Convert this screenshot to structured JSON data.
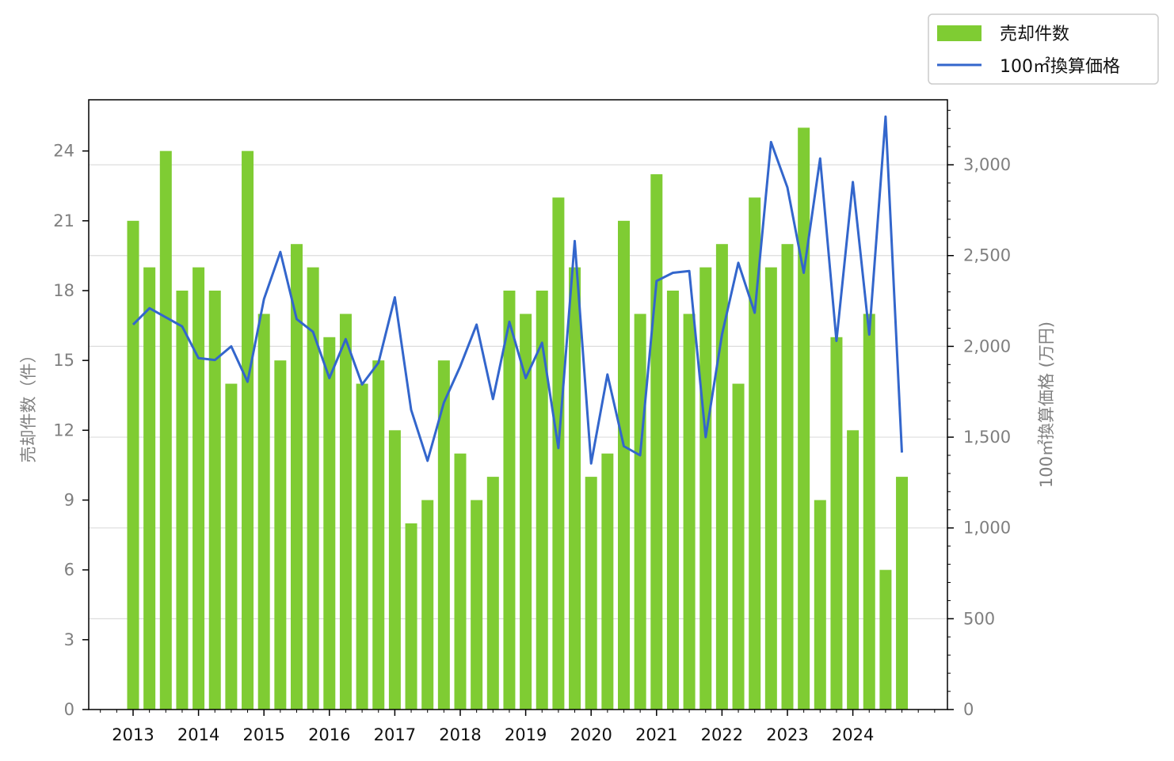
{
  "chart_data": {
    "type": "bar+line",
    "title": "",
    "xlabel": "",
    "ylabel_left": "売却件数（件）",
    "ylabel_right": "100㎡換算価格 (万円)",
    "x_tick_labels": [
      "2013",
      "2014",
      "2015",
      "2016",
      "2017",
      "2018",
      "2019",
      "2020",
      "2021",
      "2022",
      "2023",
      "2024"
    ],
    "x_start_year": 2013,
    "periods_per_year": 4,
    "left_axis": {
      "min": 0,
      "max": 26.2,
      "ticks": [
        0,
        3,
        6,
        9,
        12,
        15,
        18,
        21,
        24
      ],
      "tick_labels": [
        "0",
        "3",
        "6",
        "9",
        "12",
        "15",
        "18",
        "21",
        "24"
      ]
    },
    "right_axis": {
      "min": 0,
      "max": 3358,
      "ticks": [
        0,
        500,
        1000,
        1500,
        2000,
        2500,
        3000
      ],
      "tick_labels": [
        "0",
        "500",
        "1,000",
        "1,500",
        "2,000",
        "2,500",
        "3,000"
      ]
    },
    "grid": "horizontal (right axis)",
    "legend": {
      "position": "top-right outside",
      "entries": [
        "売却件数",
        "100㎡換算価格"
      ]
    },
    "colors": {
      "bar": "#7fcc33",
      "line": "#3366cc",
      "grid": "#dddddd",
      "tick_text": "#7f7f7f"
    },
    "series": [
      {
        "name": "売却件数",
        "type": "bar",
        "axis": "left",
        "values": [
          21,
          19,
          24,
          18,
          19,
          18,
          14,
          24,
          17,
          15,
          20,
          19,
          16,
          17,
          14,
          15,
          12,
          8,
          9,
          15,
          11,
          9,
          10,
          18,
          17,
          18,
          22,
          19,
          10,
          11,
          21,
          17,
          23,
          18,
          17,
          19,
          20,
          14,
          22,
          19,
          20,
          25,
          9,
          16,
          12,
          17,
          6,
          10
        ]
      },
      {
        "name": "100㎡換算価格",
        "type": "line",
        "axis": "right",
        "values": [
          2120,
          2210,
          2160,
          2110,
          1935,
          1925,
          2000,
          1805,
          2260,
          2520,
          2150,
          2080,
          1825,
          2040,
          1790,
          1910,
          2270,
          1650,
          1370,
          1690,
          1890,
          2120,
          1710,
          2135,
          1825,
          2020,
          1440,
          2580,
          1355,
          1845,
          1450,
          1400,
          2360,
          2405,
          2415,
          1500,
          2065,
          2460,
          2185,
          3125,
          2875,
          2405,
          3035,
          2030,
          2905,
          2065,
          3265,
          1415
        ]
      }
    ]
  }
}
